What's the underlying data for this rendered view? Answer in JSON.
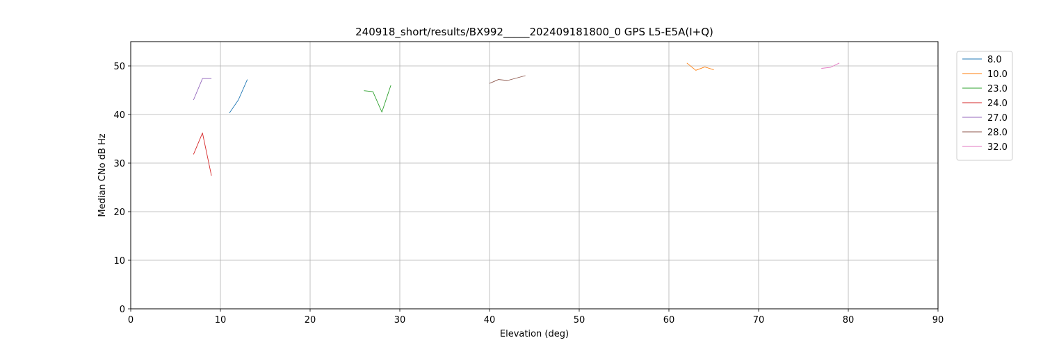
{
  "chart_data": {
    "type": "line",
    "title": "240918_short/results/BX992_____202409181800_0 GPS L5-E5A(I+Q)",
    "xlabel": "Elevation (deg)",
    "ylabel": "Median CNo dB Hz",
    "xlim": [
      0,
      90
    ],
    "ylim": [
      0,
      55
    ],
    "xticks": [
      0,
      10,
      20,
      30,
      40,
      50,
      60,
      70,
      80,
      90
    ],
    "yticks": [
      0,
      10,
      20,
      30,
      40,
      50
    ],
    "grid": true,
    "legend_position": "upper right, outside plot area",
    "series": [
      {
        "name": "8.0",
        "color": "#1f77b4",
        "x": [
          11,
          12,
          13
        ],
        "y": [
          40.3,
          43.0,
          47.2
        ]
      },
      {
        "name": "10.0",
        "color": "#ff7f0e",
        "x": [
          62,
          63,
          64,
          65
        ],
        "y": [
          50.6,
          49.1,
          49.8,
          49.2
        ]
      },
      {
        "name": "23.0",
        "color": "#2ca02c",
        "x": [
          26,
          27,
          28,
          29
        ],
        "y": [
          44.9,
          44.7,
          40.5,
          46.0
        ]
      },
      {
        "name": "24.0",
        "color": "#d62728",
        "x": [
          7,
          8,
          9
        ],
        "y": [
          31.8,
          36.2,
          27.4
        ]
      },
      {
        "name": "27.0",
        "color": "#9467bd",
        "x": [
          7,
          8,
          9
        ],
        "y": [
          43.0,
          47.4,
          47.4
        ]
      },
      {
        "name": "28.0",
        "color": "#8c564b",
        "x": [
          40,
          41,
          42,
          43,
          44
        ],
        "y": [
          46.4,
          47.2,
          47.0,
          47.5,
          48.0
        ]
      },
      {
        "name": "32.0",
        "color": "#e377c2",
        "x": [
          77,
          78,
          79
        ],
        "y": [
          49.5,
          49.7,
          50.6
        ]
      }
    ]
  }
}
